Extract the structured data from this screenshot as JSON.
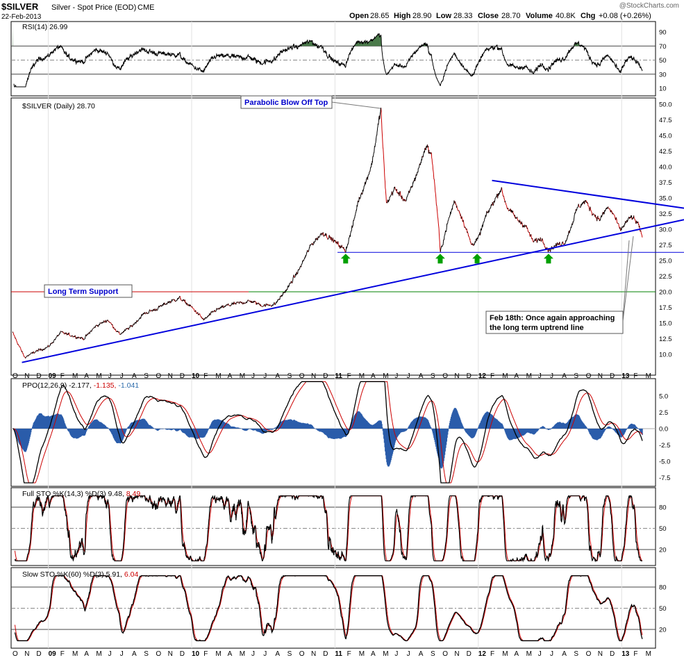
{
  "header": {
    "symbol": "$SILVER",
    "description": "Silver - Spot Price (EOD)",
    "exchange": "CME",
    "date": "22-Feb-2013",
    "watermark": "@StockCharts.com",
    "quote": {
      "open_label": "Open",
      "open": "28.65",
      "high_label": "High",
      "high": "28.90",
      "low_label": "Low",
      "low": "28.33",
      "close_label": "Close",
      "close": "28.70",
      "volume_label": "Volume",
      "volume": "40.8K",
      "chg_label": "Chg",
      "chg": "+0.08 (+0.26%)"
    }
  },
  "x_axis": {
    "labels": [
      "O",
      "N",
      "D",
      "09",
      "F",
      "M",
      "A",
      "M",
      "J",
      "J",
      "A",
      "S",
      "O",
      "N",
      "D",
      "10",
      "F",
      "M",
      "A",
      "M",
      "J",
      "J",
      "A",
      "S",
      "O",
      "N",
      "D",
      "11",
      "F",
      "M",
      "A",
      "M",
      "J",
      "J",
      "A",
      "S",
      "O",
      "N",
      "D",
      "12",
      "F",
      "M",
      "A",
      "M",
      "J",
      "J",
      "A",
      "S",
      "O",
      "N",
      "D",
      "13",
      "F",
      "M"
    ],
    "bold_labels": [
      "09",
      "10",
      "11",
      "12",
      "13"
    ]
  },
  "colors": {
    "price_up": "#000000",
    "price_down": "#cc0000",
    "trend_blue": "#0000dd",
    "support_red": "#cc0000",
    "support_green": "#008000",
    "histogram": "#2a5caa",
    "signal_red": "#cc0000",
    "rsi_fill": "#4a7a4a",
    "arrow_green": "#00a000"
  },
  "panels": {
    "rsi": {
      "label": "RSI(14)",
      "value": "26.99"
    },
    "price": {
      "label": "$SILVER (Daily)",
      "value": "28.70"
    },
    "ppo": {
      "label": "PPO(12,26,9)",
      "v1": "-2.177,",
      "v2": "-1.135,",
      "v3": "-1.041"
    },
    "fullsto": {
      "label": "Full STO %K(14,3) %D(3)",
      "v1": "9.48,",
      "v2": "8.49"
    },
    "slowsto": {
      "label": "Slow STO %K(60) %D(3)",
      "v1": "5.91,",
      "v2": "6.04"
    }
  },
  "annotations": {
    "parabolic": "Parabolic Blow Off Top",
    "support": "Long Term Support",
    "note_line1": "Feb 18th: Once again approaching",
    "note_line2": "the long term uptrend line"
  },
  "chart_data": [
    {
      "type": "line",
      "name": "RSI(14)",
      "y_ticks": [
        "90",
        "70",
        "50",
        "30",
        "10"
      ],
      "ylim": [
        10,
        90
      ],
      "levels": [
        70,
        50,
        30
      ],
      "last": 26.99
    },
    {
      "type": "line",
      "name": "$SILVER (Daily)",
      "y_ticks": [
        "50.0",
        "47.5",
        "45.0",
        "42.5",
        "40.0",
        "37.5",
        "35.0",
        "32.5",
        "30.0",
        "27.5",
        "25.0",
        "22.5",
        "20.0",
        "17.5",
        "15.0",
        "12.5",
        "10.0"
      ],
      "ylim": [
        7.5,
        51
      ],
      "anchors": [
        [
          "2008-10-01",
          13.5
        ],
        [
          "2008-11-01",
          9.5
        ],
        [
          "2008-12-01",
          10.5
        ],
        [
          "2009-01-01",
          11.2
        ],
        [
          "2009-02-01",
          13.5
        ],
        [
          "2009-03-01",
          13.0
        ],
        [
          "2009-04-01",
          12.5
        ],
        [
          "2009-05-01",
          14.5
        ],
        [
          "2009-06-01",
          15.5
        ],
        [
          "2009-07-01",
          13.2
        ],
        [
          "2009-08-01",
          14.5
        ],
        [
          "2009-09-01",
          16.5
        ],
        [
          "2009-10-01",
          17.2
        ],
        [
          "2009-11-01",
          18.3
        ],
        [
          "2009-12-01",
          19.0
        ],
        [
          "2010-01-01",
          17.5
        ],
        [
          "2010-02-01",
          15.5
        ],
        [
          "2010-03-01",
          17.0
        ],
        [
          "2010-04-01",
          17.8
        ],
        [
          "2010-05-01",
          18.2
        ],
        [
          "2010-06-01",
          18.5
        ],
        [
          "2010-07-01",
          17.8
        ],
        [
          "2010-08-01",
          18.0
        ],
        [
          "2010-09-01",
          20.5
        ],
        [
          "2010-10-01",
          23.5
        ],
        [
          "2010-11-01",
          27.5
        ],
        [
          "2010-12-01",
          29.5
        ],
        [
          "2011-01-01",
          28.0
        ],
        [
          "2011-01-28",
          26.6
        ],
        [
          "2011-02-15",
          30.5
        ],
        [
          "2011-03-01",
          34.5
        ],
        [
          "2011-03-20",
          37.5
        ],
        [
          "2011-04-05",
          40.5
        ],
        [
          "2011-04-28",
          49.3
        ],
        [
          "2011-05-03",
          43.0
        ],
        [
          "2011-05-12",
          34.0
        ],
        [
          "2011-06-01",
          36.5
        ],
        [
          "2011-07-01",
          34.5
        ],
        [
          "2011-08-01",
          39.5
        ],
        [
          "2011-08-22",
          43.5
        ],
        [
          "2011-09-05",
          41.5
        ],
        [
          "2011-09-22",
          30.5
        ],
        [
          "2011-09-26",
          26.2
        ],
        [
          "2011-10-15",
          31.0
        ],
        [
          "2011-11-01",
          34.5
        ],
        [
          "2011-11-20",
          32.0
        ],
        [
          "2011-12-15",
          27.5
        ],
        [
          "2012-01-01",
          28.5
        ],
        [
          "2012-01-20",
          32.0
        ],
        [
          "2012-02-10",
          34.5
        ],
        [
          "2012-02-28",
          36.5
        ],
        [
          "2012-03-15",
          33.5
        ],
        [
          "2012-04-10",
          31.5
        ],
        [
          "2012-05-01",
          30.5
        ],
        [
          "2012-05-20",
          28.0
        ],
        [
          "2012-06-10",
          28.5
        ],
        [
          "2012-06-28",
          26.7
        ],
        [
          "2012-07-20",
          27.5
        ],
        [
          "2012-08-10",
          28.0
        ],
        [
          "2012-08-25",
          30.5
        ],
        [
          "2012-09-10",
          33.5
        ],
        [
          "2012-09-30",
          34.5
        ],
        [
          "2012-10-20",
          32.5
        ],
        [
          "2012-11-05",
          31.5
        ],
        [
          "2012-11-25",
          33.5
        ],
        [
          "2012-12-10",
          32.5
        ],
        [
          "2012-12-28",
          29.8
        ],
        [
          "2013-01-10",
          31.0
        ],
        [
          "2013-01-25",
          32.0
        ],
        [
          "2013-02-10",
          31.0
        ],
        [
          "2013-02-22",
          28.7
        ]
      ],
      "support_level": 20.0,
      "horizontal_support": 26.3,
      "uptrend_line": [
        [
          "2008-10-25",
          8.7
        ],
        [
          "2013-03-31",
          30.6
        ]
      ],
      "downtrend_line": [
        [
          "2012-02-05",
          37.8
        ],
        [
          "2013-03-31",
          34.0
        ]
      ],
      "support_arrows": [
        "2011-01-28",
        "2011-09-26",
        "2011-12-29",
        "2012-06-28"
      ],
      "last": 28.7
    },
    {
      "type": "line",
      "name": "PPO(12,26,9)",
      "y_ticks": [
        "5.0",
        "2.5",
        "0.0",
        "-2.5",
        "-5.0",
        "-7.5"
      ],
      "ylim": [
        -8.5,
        7.5
      ],
      "last": [
        -2.177,
        -1.135,
        -1.041
      ]
    },
    {
      "type": "line",
      "name": "Full STO %K(14,3) %D(3)",
      "y_ticks": [
        "80",
        "50",
        "20"
      ],
      "ylim": [
        0,
        100
      ],
      "levels": [
        80,
        50,
        20
      ],
      "last": [
        9.48,
        8.49
      ]
    },
    {
      "type": "line",
      "name": "Slow STO %K(60) %D(3)",
      "y_ticks": [
        "80",
        "50",
        "20"
      ],
      "ylim": [
        0,
        100
      ],
      "levels": [
        80,
        50,
        20
      ],
      "last": [
        5.91,
        6.04
      ]
    }
  ]
}
